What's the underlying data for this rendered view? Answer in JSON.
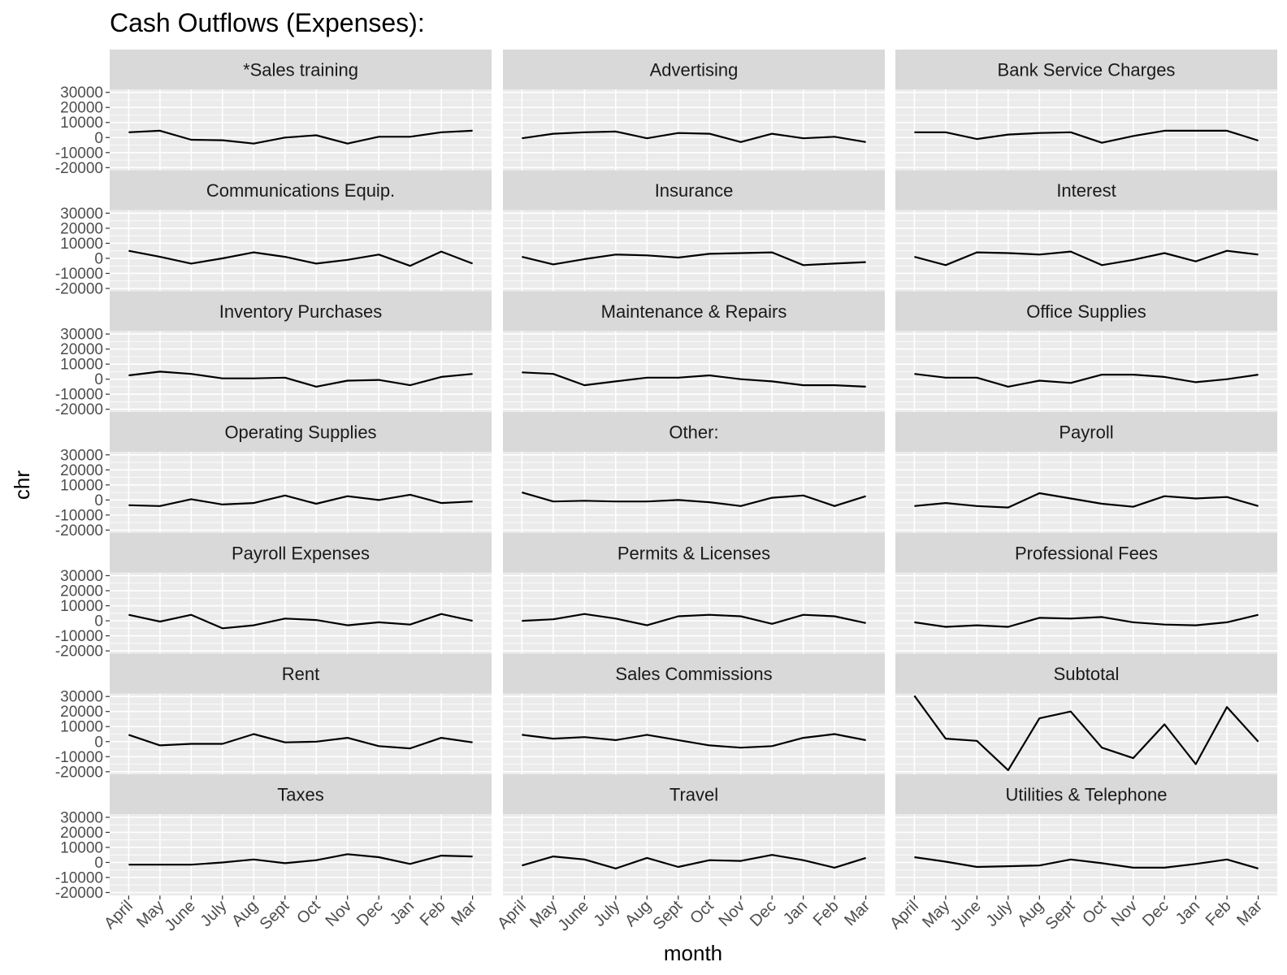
{
  "chart_data": {
    "type": "line",
    "title": "Cash Outflows (Expenses):",
    "xlabel": "month",
    "ylabel": "chr",
    "categories": [
      "April",
      "May",
      "June",
      "July",
      "Aug",
      "Sept",
      "Oct",
      "Nov",
      "Dec",
      "Jan",
      "Feb",
      "Mar"
    ],
    "yticks": [
      30000,
      20000,
      10000,
      0,
      -10000,
      -20000
    ],
    "ylim": [
      -22000,
      32000
    ],
    "grid": true,
    "facet_layout": "3 columns x 7 rows, shared axes",
    "colors": {
      "panel_bg": "#ebebeb",
      "strip_bg": "#d9d9d9",
      "grid": "#ffffff",
      "line": "#000000",
      "tick_text": "#4d4d4d"
    },
    "panels": [
      {
        "name": "*Sales training",
        "values": [
          3500,
          4500,
          -1500,
          -1800,
          -4000,
          0,
          1500,
          -4000,
          500,
          500,
          3500,
          4500
        ]
      },
      {
        "name": "Advertising",
        "values": [
          -500,
          2500,
          3500,
          4000,
          -500,
          3000,
          2500,
          -3000,
          2500,
          -500,
          500,
          -3000
        ]
      },
      {
        "name": "Bank Service Charges",
        "values": [
          3500,
          3500,
          -1000,
          2000,
          3000,
          3500,
          -3500,
          1000,
          4500,
          4500,
          4500,
          -2000
        ]
      },
      {
        "name": "Communications Equip.",
        "values": [
          5000,
          1000,
          -3500,
          0,
          4000,
          1000,
          -3500,
          -1000,
          2500,
          -5000,
          4500,
          -3500
        ]
      },
      {
        "name": "Insurance",
        "values": [
          1000,
          -4000,
          -500,
          2500,
          2000,
          500,
          3000,
          3500,
          4000,
          -4500,
          -3500,
          -2500
        ]
      },
      {
        "name": "Interest",
        "values": [
          1000,
          -4500,
          4000,
          3500,
          2500,
          4500,
          -4500,
          -1000,
          3500,
          -2000,
          5000,
          2500
        ]
      },
      {
        "name": "Inventory Purchases",
        "values": [
          2500,
          5000,
          3500,
          500,
          500,
          1000,
          -5000,
          -1000,
          -500,
          -4000,
          1500,
          3500
        ]
      },
      {
        "name": "Maintenance & Repairs",
        "values": [
          4500,
          3500,
          -4000,
          -1500,
          1000,
          1000,
          2500,
          0,
          -1500,
          -4000,
          -4000,
          -5000
        ]
      },
      {
        "name": "Office Supplies",
        "values": [
          3500,
          1000,
          1000,
          -5000,
          -1000,
          -2500,
          3000,
          3000,
          1500,
          -2000,
          0,
          3000
        ]
      },
      {
        "name": "Operating Supplies",
        "values": [
          -3500,
          -4000,
          500,
          -3000,
          -2000,
          3000,
          -2500,
          2500,
          0,
          3500,
          -2000,
          -1000
        ]
      },
      {
        "name": "Other:",
        "values": [
          5000,
          -1000,
          -500,
          -1000,
          -1000,
          0,
          -1500,
          -4000,
          1500,
          3000,
          -4000,
          2500
        ]
      },
      {
        "name": "Payroll",
        "values": [
          -4000,
          -2000,
          -4000,
          -5000,
          4500,
          1000,
          -2500,
          -4500,
          2500,
          1000,
          2000,
          -4000
        ]
      },
      {
        "name": "Payroll Expenses",
        "values": [
          4000,
          -500,
          4000,
          -5000,
          -3000,
          1500,
          500,
          -3000,
          -1000,
          -2500,
          4500,
          0
        ]
      },
      {
        "name": "Permits & Licenses",
        "values": [
          0,
          1000,
          4500,
          1500,
          -3000,
          3000,
          4000,
          3000,
          -2000,
          4000,
          3000,
          -1500
        ]
      },
      {
        "name": "Professional Fees",
        "values": [
          -1000,
          -4000,
          -3000,
          -4000,
          2000,
          1500,
          2500,
          -1000,
          -2500,
          -3000,
          -1000,
          4000
        ]
      },
      {
        "name": "Rent",
        "values": [
          4500,
          -2500,
          -1500,
          -1500,
          5000,
          -500,
          0,
          2500,
          -3000,
          -4500,
          2500,
          -500
        ]
      },
      {
        "name": "Sales Commissions",
        "values": [
          4500,
          2000,
          3000,
          1000,
          4500,
          1000,
          -2500,
          -4000,
          -3000,
          2500,
          5000,
          1000
        ]
      },
      {
        "name": "Subtotal",
        "values": [
          30500,
          2000,
          500,
          -19000,
          15500,
          20000,
          -4000,
          -11000,
          11500,
          -15000,
          23000,
          0
        ]
      },
      {
        "name": "Taxes",
        "values": [
          -1500,
          -1500,
          -1500,
          0,
          2000,
          -500,
          1500,
          5500,
          3500,
          -1000,
          4500,
          4000
        ]
      },
      {
        "name": "Travel",
        "values": [
          -2000,
          4000,
          2000,
          -4000,
          3000,
          -3000,
          1500,
          1000,
          5000,
          1500,
          -3500,
          3000
        ]
      },
      {
        "name": "Utilities & Telephone",
        "values": [
          3500,
          500,
          -3000,
          -2500,
          -2000,
          2000,
          -500,
          -3500,
          -3500,
          -1000,
          2000,
          -4000
        ]
      }
    ]
  }
}
